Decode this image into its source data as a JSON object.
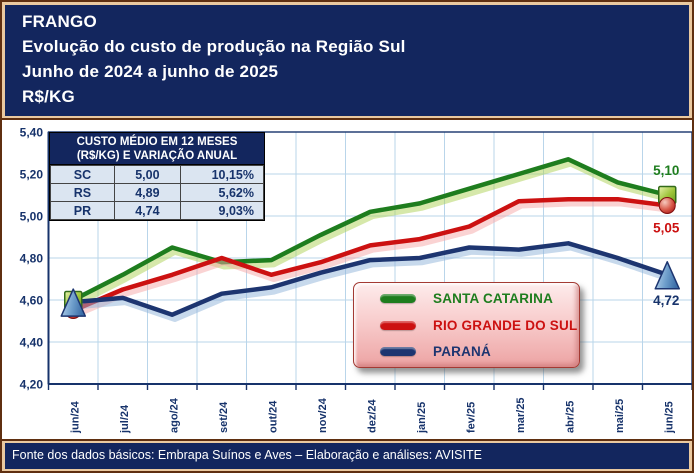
{
  "header": {
    "line1": "FRANGO",
    "line2": "Evolução do custo de produção na Região Sul",
    "line3": "Junho de 2024 a junho de 2025",
    "line4": "R$/KG"
  },
  "overlay_table": {
    "title_line1": "CUSTO MÉDIO EM 12 MESES",
    "title_line2": "(R$/KG)  E VARIAÇÃO ANUAL",
    "rows": [
      {
        "state": "SC",
        "value": "5,00",
        "variation": "10,15%"
      },
      {
        "state": "RS",
        "value": "4,89",
        "variation": "5,62%"
      },
      {
        "state": "PR",
        "value": "4,74",
        "variation": "9,03%"
      }
    ]
  },
  "legend": {
    "items": [
      {
        "label": "SANTA CATARINA",
        "color": "#1e7d1e"
      },
      {
        "label": "RIO GRANDE DO SUL",
        "color": "#cc1111"
      },
      {
        "label": "PARANÁ",
        "color": "#1d3570"
      }
    ]
  },
  "footer": {
    "text": "Fonte dos dados básicos: Embrapa Suínos e Aves – Elaboração e análises: AVISITE"
  },
  "chart_data": {
    "type": "line",
    "title": "FRANGO - Evolução do custo de produção na Região Sul (R$/KG)",
    "categories": [
      "jun/24",
      "jul/24",
      "ago/24",
      "set/24",
      "out/24",
      "nov/24",
      "dez/24",
      "jan/25",
      "fev/25",
      "mar/25",
      "abr/25",
      "mai/25",
      "jun/25"
    ],
    "series": [
      {
        "name": "SANTA CATARINA",
        "color": "#1e7d1e",
        "glow": "#aed155",
        "marker": "square",
        "end_label": "5,10",
        "values": [
          4.6,
          4.72,
          4.85,
          4.78,
          4.79,
          4.91,
          5.02,
          5.06,
          5.13,
          5.2,
          5.27,
          5.16,
          5.1
        ]
      },
      {
        "name": "RIO GRANDE DO SUL",
        "color": "#cc1111",
        "glow": "#f5a8a8",
        "marker": "circle",
        "end_label": "5,05",
        "values": [
          4.55,
          4.65,
          4.72,
          4.8,
          4.72,
          4.78,
          4.86,
          4.89,
          4.95,
          5.07,
          5.08,
          5.08,
          5.05
        ]
      },
      {
        "name": "PARANÁ",
        "color": "#1d3570",
        "glow": "#8fb3da",
        "marker": "triangle",
        "end_label": "4,72",
        "values": [
          4.59,
          4.61,
          4.53,
          4.63,
          4.66,
          4.73,
          4.79,
          4.8,
          4.85,
          4.84,
          4.87,
          4.8,
          4.72
        ]
      }
    ],
    "ylim": [
      4.2,
      5.4
    ],
    "ytick_step": 0.2,
    "yticks": [
      "5,40",
      "5,20",
      "5,00",
      "4,80",
      "4,60",
      "4,40",
      "4,20"
    ],
    "grid": true,
    "grid_color": "#b9d5ea",
    "axis_color": "#17336b",
    "legend_position": "inside-right"
  }
}
